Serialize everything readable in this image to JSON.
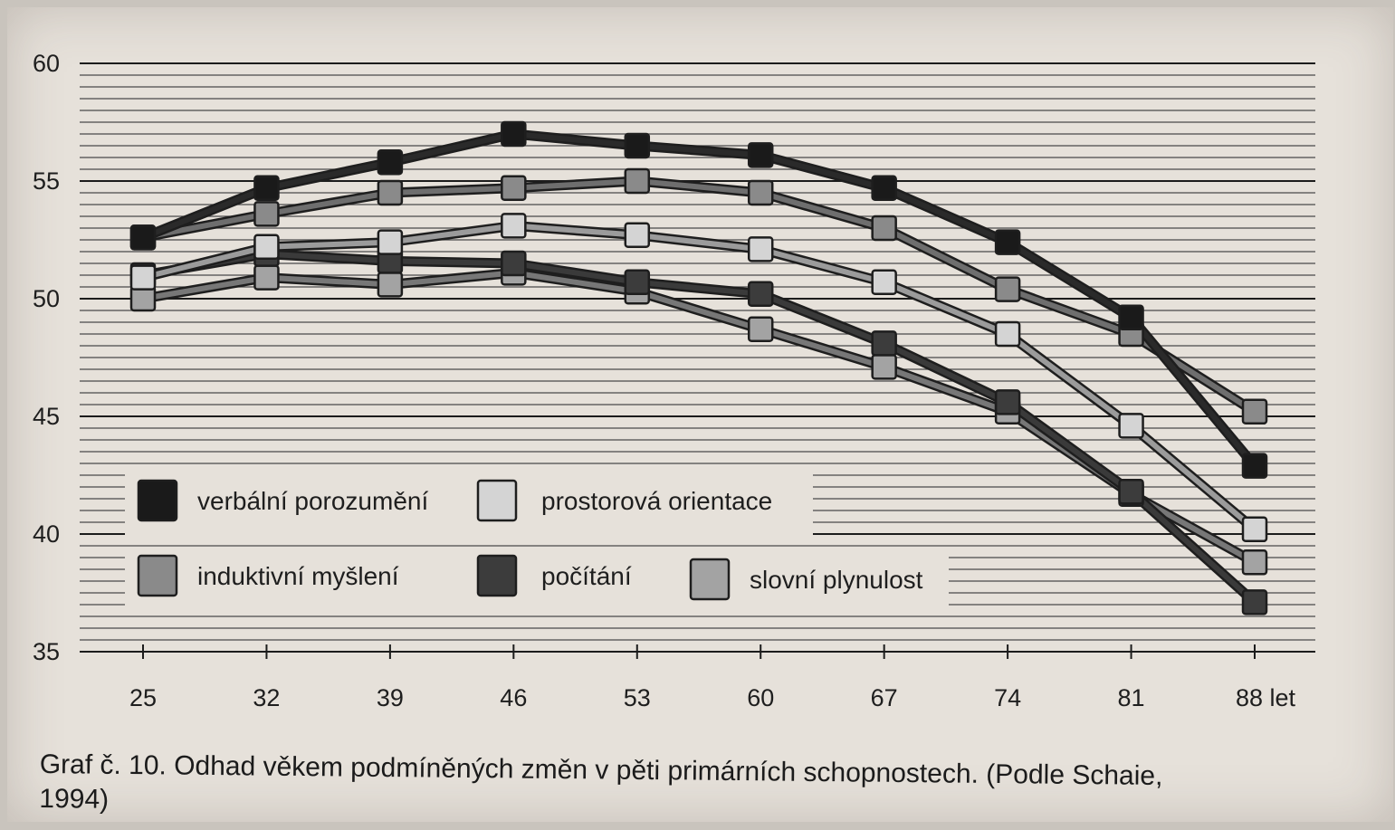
{
  "chart_data": {
    "type": "line",
    "title": "",
    "xlabel": "",
    "ylabel": "",
    "x_unit": "let",
    "x": [
      25,
      32,
      39,
      46,
      53,
      60,
      67,
      74,
      81,
      88
    ],
    "x_tick_labels": [
      "25",
      "32",
      "39",
      "46",
      "53",
      "60",
      "67",
      "74",
      "81",
      "88 let"
    ],
    "ylim": [
      35,
      60
    ],
    "y_ticks": [
      35,
      40,
      45,
      50,
      55,
      60
    ],
    "grid": true,
    "legend_position": "lower-left",
    "series": [
      {
        "name": "verbální porozumění",
        "fill": "#1a1a1a",
        "line": "#2a2a2a",
        "values": [
          52.6,
          54.7,
          55.8,
          57.0,
          56.5,
          56.1,
          54.7,
          52.4,
          49.2,
          42.9
        ]
      },
      {
        "name": "induktivní myšlení",
        "fill": "#8a8a8a",
        "line": "#6e6e6e",
        "values": [
          52.6,
          53.6,
          54.5,
          54.7,
          55.0,
          54.5,
          53.0,
          50.4,
          48.5,
          45.2
        ]
      },
      {
        "name": "prostorová orientace",
        "fill": "#d4d4d4",
        "line": "#9b9b9b",
        "values": [
          50.9,
          52.2,
          52.4,
          53.1,
          52.7,
          52.1,
          50.7,
          48.5,
          44.6,
          40.2
        ]
      },
      {
        "name": "počítání",
        "fill": "#3c3c3c",
        "line": "#3a3a3a",
        "values": [
          51.0,
          51.9,
          51.6,
          51.5,
          50.7,
          50.2,
          48.1,
          45.6,
          41.8,
          37.1
        ]
      },
      {
        "name": "slovní plynulost",
        "fill": "#a3a3a3",
        "line": "#777777",
        "values": [
          50.0,
          50.9,
          50.6,
          51.1,
          50.3,
          48.7,
          47.1,
          45.2,
          41.7,
          38.8
        ]
      }
    ]
  },
  "caption": {
    "line1": "Graf č. 10. Odhad věkem podmíněných změn v pěti primárních schopnostech. (Podle Schaie,",
    "line2": "1994)"
  }
}
